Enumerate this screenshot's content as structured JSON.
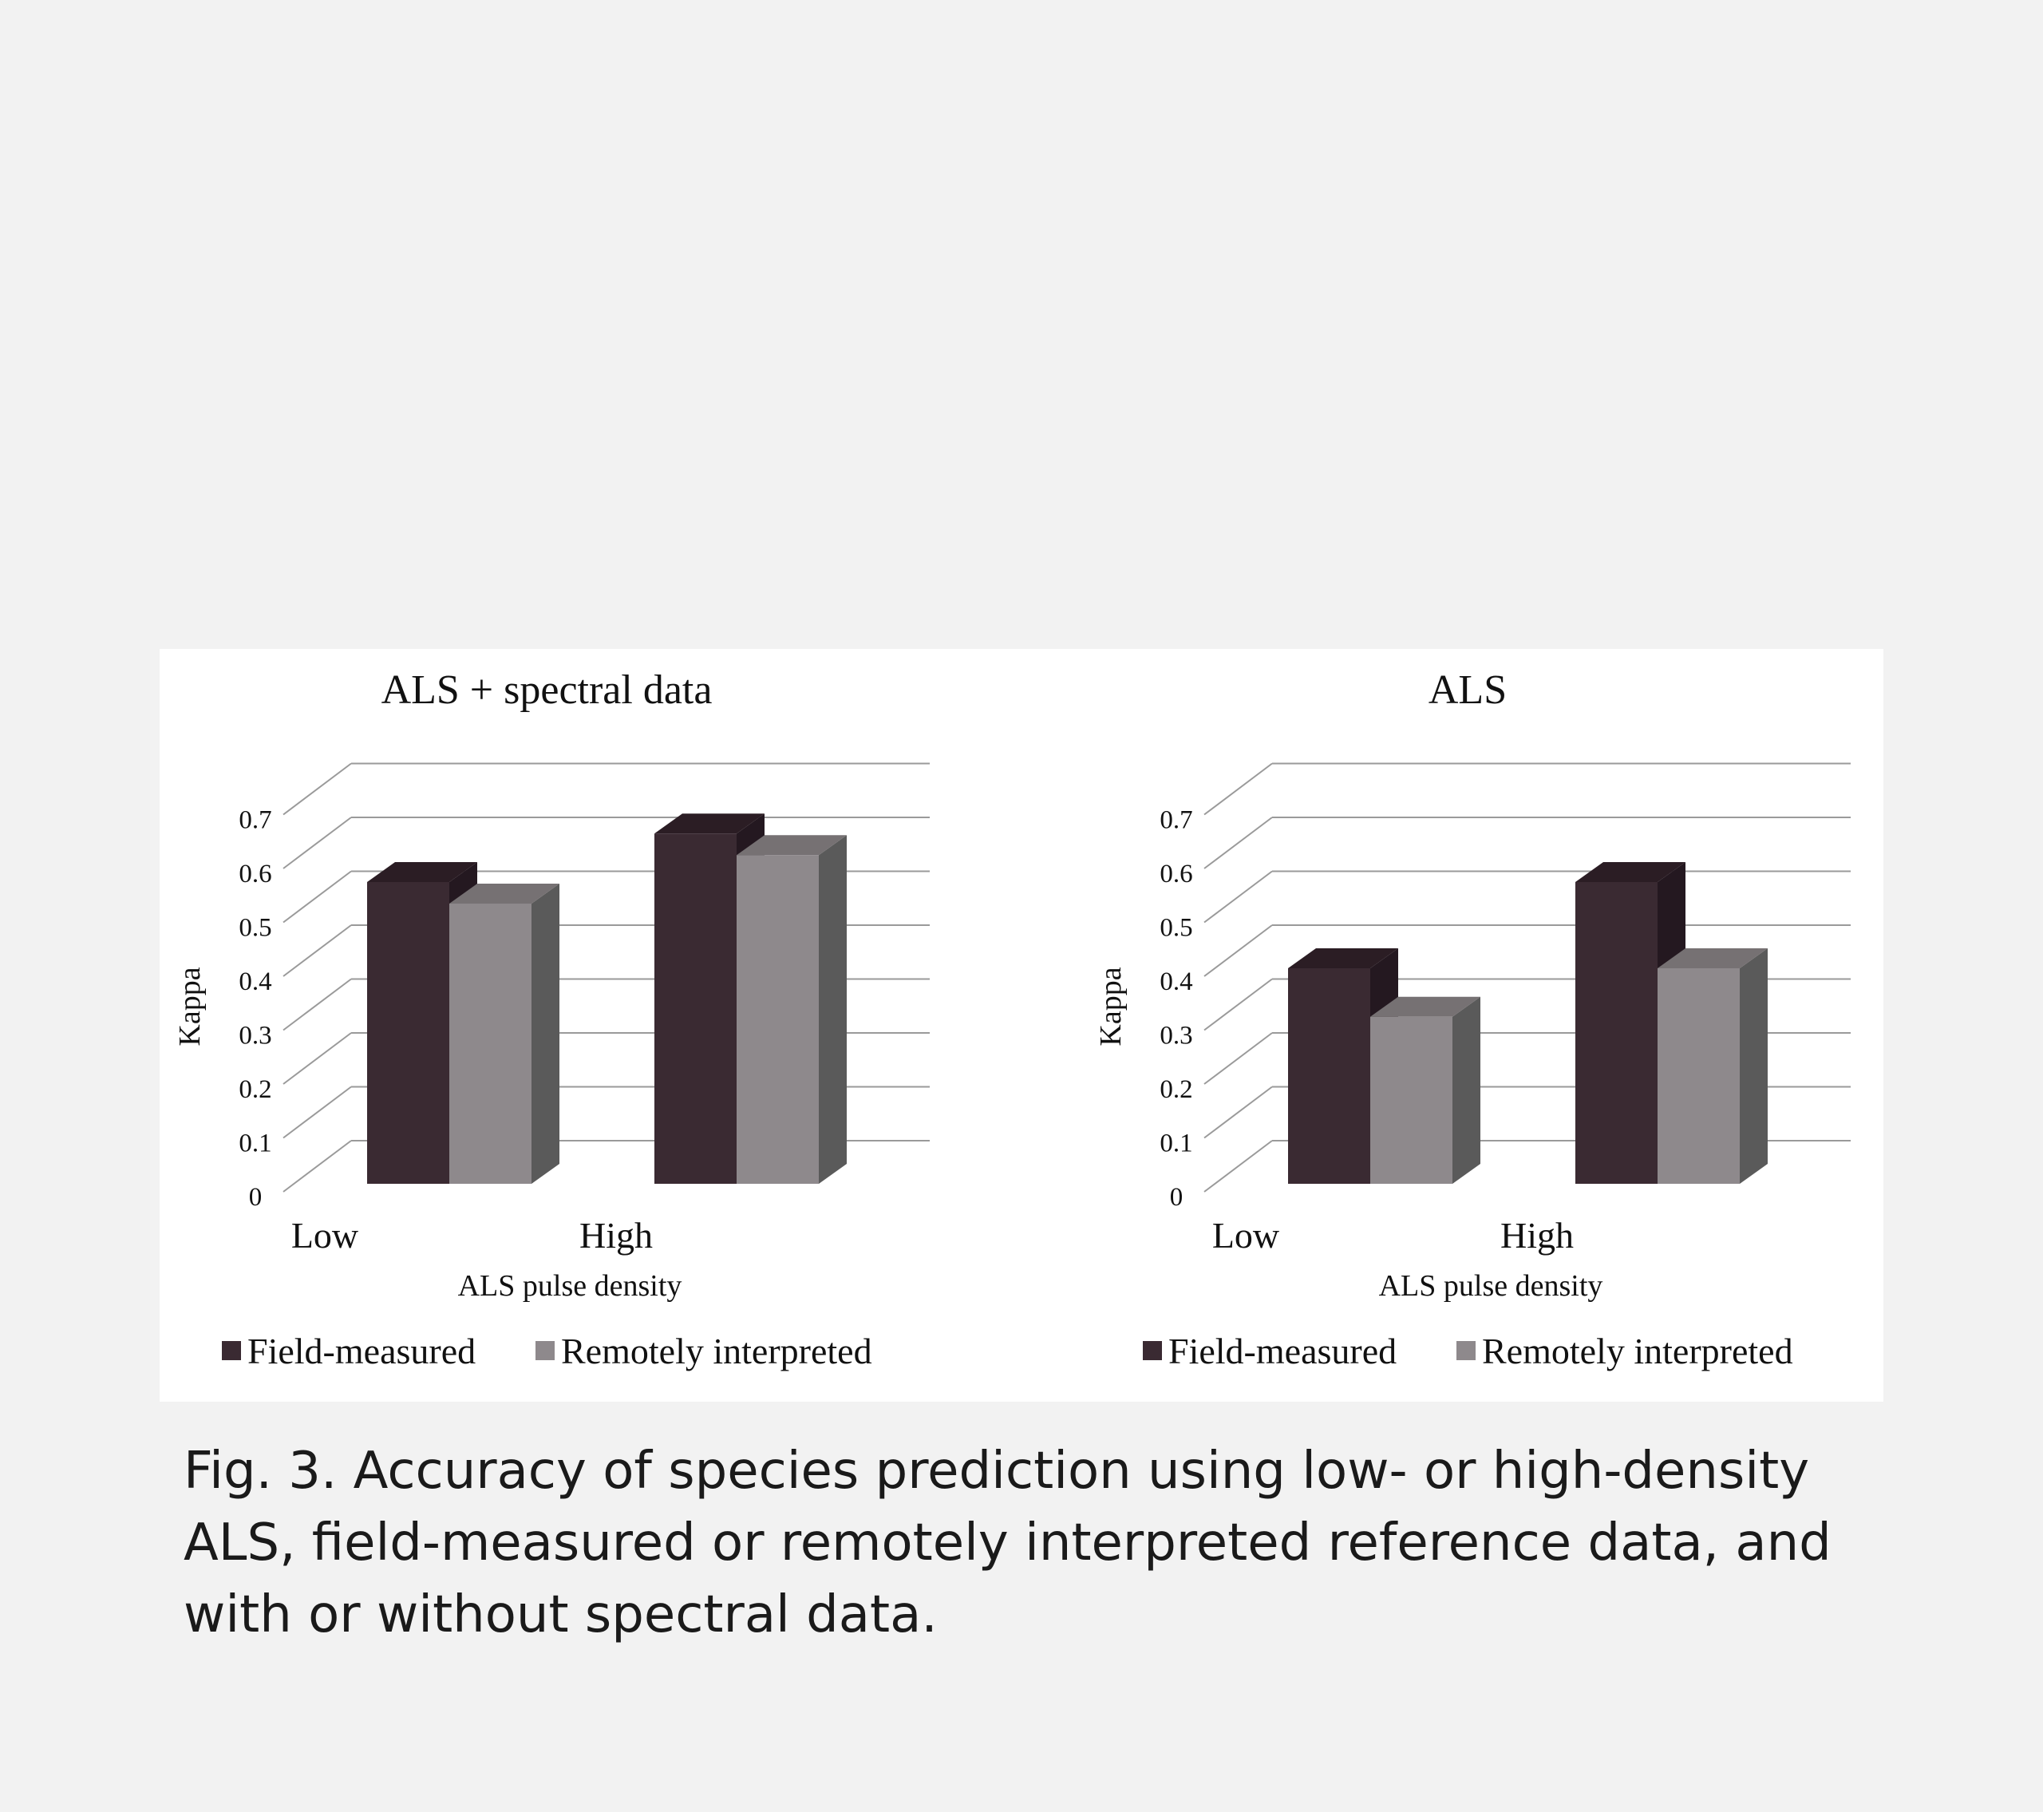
{
  "chart_data": [
    {
      "type": "bar",
      "title": "ALS + spectral data",
      "xlabel": "ALS pulse density",
      "ylabel": "Kappa",
      "categories": [
        "Low",
        "High"
      ],
      "ylim": [
        0,
        0.7
      ],
      "yticks": [
        "0",
        "0.1",
        "0.2",
        "0.3",
        "0.4",
        "0.5",
        "0.6",
        "0.7"
      ],
      "series": [
        {
          "name": "Field-measured",
          "values": [
            0.56,
            0.65
          ]
        },
        {
          "name": "Remotely interpreted",
          "values": [
            0.52,
            0.61
          ]
        }
      ],
      "legend": "bottom",
      "grid": true,
      "style": "3d-clustered"
    },
    {
      "type": "bar",
      "title": "ALS",
      "xlabel": "ALS pulse density",
      "ylabel": "Kappa",
      "categories": [
        "Low",
        "High"
      ],
      "ylim": [
        0,
        0.7
      ],
      "yticks": [
        "0",
        "0.1",
        "0.2",
        "0.3",
        "0.4",
        "0.5",
        "0.6",
        "0.7"
      ],
      "series": [
        {
          "name": "Field-measured",
          "values": [
            0.4,
            0.56
          ]
        },
        {
          "name": "Remotely interpreted",
          "values": [
            0.31,
            0.4
          ]
        }
      ],
      "legend": "bottom",
      "grid": true,
      "style": "3d-clustered"
    }
  ],
  "colors": {
    "field_measured": "#3a2a32",
    "field_measured_top": "#2b1d24",
    "field_measured_side": "#241820",
    "remotely_interpreted": "#8e898c",
    "remotely_interpreted_top": "#767173",
    "remotely_interpreted_side": "#5a5a5a",
    "gridline": "#9a9a9a"
  },
  "caption": "Fig. 3. Accuracy of species prediction using low- or high-density ALS, field-measured or remotely interpreted reference data, and with or without spectral data."
}
